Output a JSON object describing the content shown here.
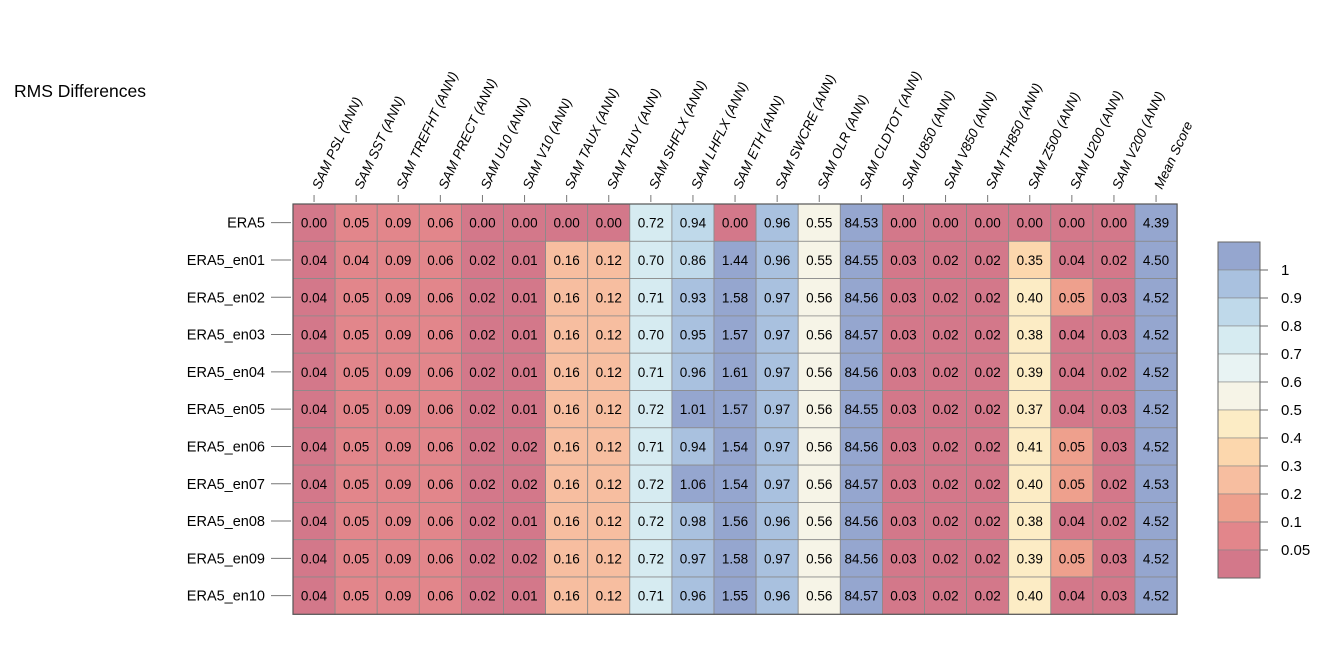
{
  "chart_data": {
    "type": "heatmap",
    "title": "RMS Differences",
    "columns": [
      "SAM PSL (ANN)",
      "SAM SST (ANN)",
      "SAM TREFHT (ANN)",
      "SAM PRECT (ANN)",
      "SAM U10 (ANN)",
      "SAM V10 (ANN)",
      "SAM TAUX (ANN)",
      "SAM TAUY (ANN)",
      "SAM SHFLX (ANN)",
      "SAM LHFLX (ANN)",
      "SAM ETH (ANN)",
      "SAM SWCRE (ANN)",
      "SAM OLR (ANN)",
      "SAM CLDTOT (ANN)",
      "SAM U850 (ANN)",
      "SAM V850 (ANN)",
      "SAM TH850 (ANN)",
      "SAM Z500 (ANN)",
      "SAM U200 (ANN)",
      "SAM V200 (ANN)",
      "Mean Score"
    ],
    "rows": [
      "ERA5",
      "ERA5_en01",
      "ERA5_en02",
      "ERA5_en03",
      "ERA5_en04",
      "ERA5_en05",
      "ERA5_en06",
      "ERA5_en07",
      "ERA5_en08",
      "ERA5_en09",
      "ERA5_en10"
    ],
    "values": [
      [
        "0.00",
        "0.05",
        "0.09",
        "0.06",
        "0.00",
        "0.00",
        "0.00",
        "0.00",
        "0.72",
        "0.94",
        "0.00",
        "0.96",
        "0.55",
        "84.53",
        "0.00",
        "0.00",
        "0.00",
        "0.00",
        "0.00",
        "0.00",
        "4.39"
      ],
      [
        "0.04",
        "0.04",
        "0.09",
        "0.06",
        "0.02",
        "0.01",
        "0.16",
        "0.12",
        "0.70",
        "0.86",
        "1.44",
        "0.96",
        "0.55",
        "84.55",
        "0.03",
        "0.02",
        "0.02",
        "0.35",
        "0.04",
        "0.02",
        "4.50"
      ],
      [
        "0.04",
        "0.05",
        "0.09",
        "0.06",
        "0.02",
        "0.01",
        "0.16",
        "0.12",
        "0.71",
        "0.93",
        "1.58",
        "0.97",
        "0.56",
        "84.56",
        "0.03",
        "0.02",
        "0.02",
        "0.40",
        "0.05",
        "0.03",
        "4.52"
      ],
      [
        "0.04",
        "0.05",
        "0.09",
        "0.06",
        "0.02",
        "0.01",
        "0.16",
        "0.12",
        "0.70",
        "0.95",
        "1.57",
        "0.97",
        "0.56",
        "84.57",
        "0.03",
        "0.02",
        "0.02",
        "0.38",
        "0.04",
        "0.03",
        "4.52"
      ],
      [
        "0.04",
        "0.05",
        "0.09",
        "0.06",
        "0.02",
        "0.01",
        "0.16",
        "0.12",
        "0.71",
        "0.96",
        "1.61",
        "0.97",
        "0.56",
        "84.56",
        "0.03",
        "0.02",
        "0.02",
        "0.39",
        "0.04",
        "0.02",
        "4.52"
      ],
      [
        "0.04",
        "0.05",
        "0.09",
        "0.06",
        "0.02",
        "0.01",
        "0.16",
        "0.12",
        "0.72",
        "1.01",
        "1.57",
        "0.97",
        "0.56",
        "84.55",
        "0.03",
        "0.02",
        "0.02",
        "0.37",
        "0.04",
        "0.03",
        "4.52"
      ],
      [
        "0.04",
        "0.05",
        "0.09",
        "0.06",
        "0.02",
        "0.02",
        "0.16",
        "0.12",
        "0.71",
        "0.94",
        "1.54",
        "0.97",
        "0.56",
        "84.56",
        "0.03",
        "0.02",
        "0.02",
        "0.41",
        "0.05",
        "0.03",
        "4.52"
      ],
      [
        "0.04",
        "0.05",
        "0.09",
        "0.06",
        "0.02",
        "0.02",
        "0.16",
        "0.12",
        "0.72",
        "1.06",
        "1.54",
        "0.97",
        "0.56",
        "84.57",
        "0.03",
        "0.02",
        "0.02",
        "0.40",
        "0.05",
        "0.02",
        "4.53"
      ],
      [
        "0.04",
        "0.05",
        "0.09",
        "0.06",
        "0.02",
        "0.01",
        "0.16",
        "0.12",
        "0.72",
        "0.98",
        "1.56",
        "0.96",
        "0.56",
        "84.56",
        "0.03",
        "0.02",
        "0.02",
        "0.38",
        "0.04",
        "0.02",
        "4.52"
      ],
      [
        "0.04",
        "0.05",
        "0.09",
        "0.06",
        "0.02",
        "0.02",
        "0.16",
        "0.12",
        "0.72",
        "0.97",
        "1.58",
        "0.97",
        "0.56",
        "84.56",
        "0.03",
        "0.02",
        "0.02",
        "0.39",
        "0.05",
        "0.03",
        "4.52"
      ],
      [
        "0.04",
        "0.05",
        "0.09",
        "0.06",
        "0.02",
        "0.01",
        "0.16",
        "0.12",
        "0.71",
        "0.96",
        "1.55",
        "0.96",
        "0.56",
        "84.57",
        "0.03",
        "0.02",
        "0.02",
        "0.40",
        "0.04",
        "0.03",
        "4.52"
      ]
    ],
    "colorbar": {
      "tick_labels": [
        "1",
        "0.9",
        "0.8",
        "0.7",
        "0.6",
        "0.5",
        "0.4",
        "0.3",
        "0.2",
        "0.1",
        "0.05"
      ],
      "colors_top_to_bottom": [
        "#95a6cf",
        "#a9c1df",
        "#bfd9ea",
        "#d6ebf1",
        "#e8f3f3",
        "#f6f4e7",
        "#fcecc5",
        "#fcd7ad",
        "#f7bea0",
        "#eea08d",
        "#e2868b",
        "#d3788a"
      ],
      "thresholds": [
        1,
        0.9,
        0.8,
        0.7,
        0.6,
        0.5,
        0.4,
        0.3,
        0.2,
        0.1,
        0.05
      ]
    }
  }
}
